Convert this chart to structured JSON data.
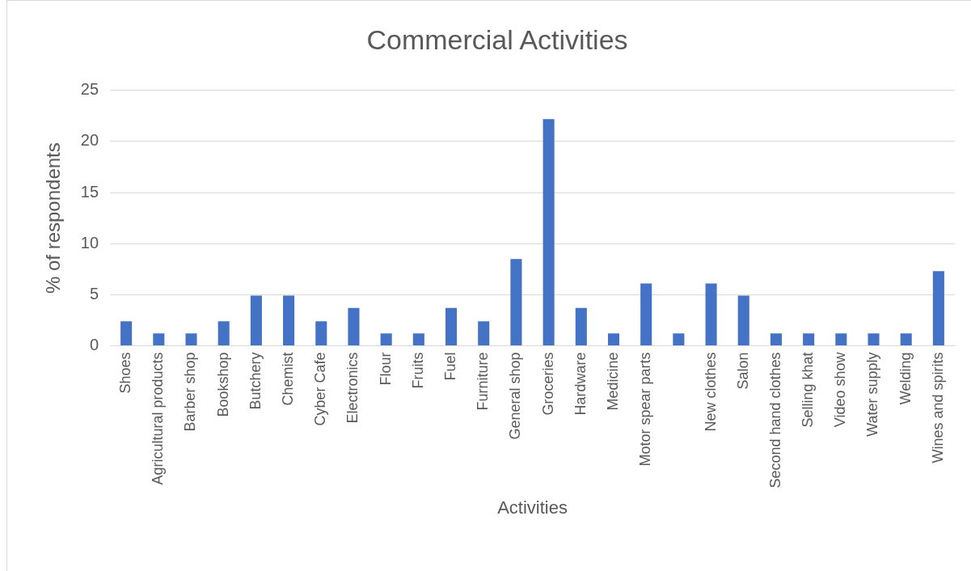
{
  "chart_data": {
    "type": "bar",
    "title": "Commercial Activities",
    "xlabel": "Activities",
    "ylabel": "% of respondents",
    "categories": [
      "Shoes",
      "Agricultural products",
      "Barber shop",
      "Bookshop",
      "Butchery",
      "Chemist",
      "Cyber Cafe",
      "Electronics",
      "Flour",
      "Fruits",
      "Fuel",
      "Furniture",
      "General shop",
      "Groceries",
      "Hardware",
      "Medicine",
      "Motor spear parts",
      null,
      "New clothes",
      "Salon",
      "Second hand clothes",
      "Selling khat",
      "Video show",
      "Water supply",
      "Welding",
      "Wines and spirits"
    ],
    "values": [
      2.4,
      1.2,
      1.2,
      2.4,
      4.9,
      4.9,
      2.4,
      3.7,
      1.2,
      1.2,
      3.7,
      2.4,
      8.5,
      22.2,
      3.7,
      1.2,
      6.1,
      1.2,
      6.1,
      4.9,
      1.2,
      1.2,
      1.2,
      1.2,
      1.2,
      7.3
    ],
    "color": "#4472c4",
    "ylim": [
      0,
      25
    ],
    "yticks": [
      0,
      5,
      10,
      15,
      20,
      25
    ],
    "grid": "y"
  }
}
